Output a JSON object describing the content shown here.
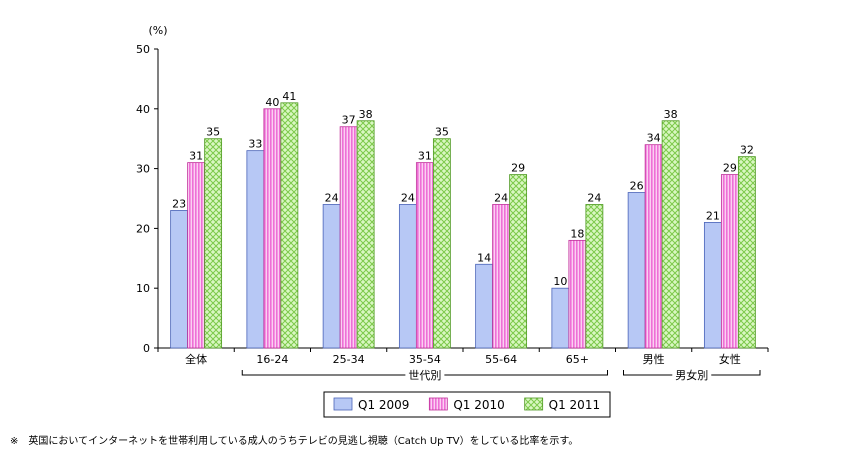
{
  "chart_data": {
    "type": "bar",
    "unit_label": "(%)",
    "ylim": [
      0,
      50
    ],
    "yticks": [
      0,
      10,
      20,
      30,
      40,
      50
    ],
    "categories": [
      "全体",
      "16-24",
      "25-34",
      "35-54",
      "55-64",
      "65+",
      "男性",
      "女性"
    ],
    "series": [
      {
        "name": "Q1 2009",
        "values": [
          23,
          33,
          24,
          24,
          14,
          10,
          26,
          21
        ],
        "color": "#b7c8f5"
      },
      {
        "name": "Q1 2010",
        "values": [
          31,
          40,
          37,
          31,
          24,
          18,
          34,
          29
        ],
        "color": "#f7a8e8"
      },
      {
        "name": "Q1 2011",
        "values": [
          35,
          41,
          38,
          35,
          29,
          24,
          38,
          32
        ],
        "color": "#c6f0a0"
      }
    ],
    "groups": [
      {
        "label": "世代別",
        "from": 1,
        "to": 5
      },
      {
        "label": "男女別",
        "from": 6,
        "to": 7
      }
    ],
    "legend_position": "bottom-center",
    "grid": false
  },
  "note": "※　英国においてインターネットを世帯利用している成人のうちテレビの見逃し視聴（Catch Up TV）をしている比率を示す。"
}
